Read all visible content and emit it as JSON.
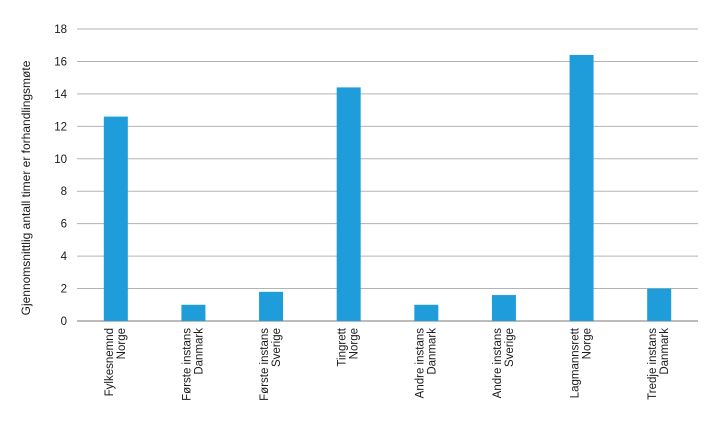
{
  "chart_data": {
    "type": "bar",
    "title": "",
    "xlabel": "",
    "ylabel": "Gjennomsnittlig antall timer er  forhandlingsmøte",
    "ylim": [
      0,
      18
    ],
    "yticks": [
      0,
      2,
      4,
      6,
      8,
      10,
      12,
      14,
      16,
      18
    ],
    "grid": true,
    "bar_color": "#1f9ddb",
    "grid_color": "#b3b3b3",
    "categories": [
      [
        "Fylkesnemnd",
        "Norge"
      ],
      [
        "Første instans",
        "Danmark"
      ],
      [
        "Første instans",
        "Sverige"
      ],
      [
        "Tingrett",
        "Norge"
      ],
      [
        "Andre instans",
        "Danmark"
      ],
      [
        "Andre instans",
        "Sverige"
      ],
      [
        "Lagmannsrett",
        "Norge"
      ],
      [
        "Tredje instans",
        "Danmark"
      ]
    ],
    "values": [
      12.6,
      1.0,
      1.8,
      14.4,
      1.0,
      1.6,
      16.4,
      2.0
    ]
  }
}
